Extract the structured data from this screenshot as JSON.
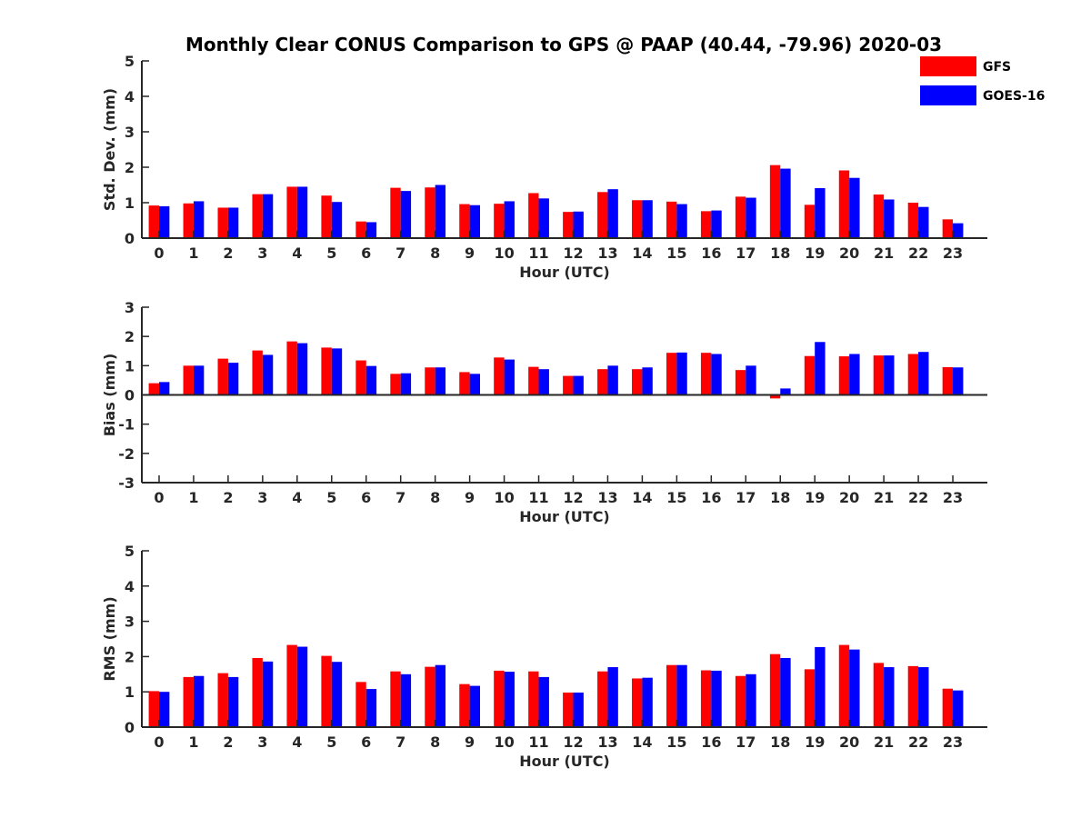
{
  "chart_data": [
    {
      "type": "bar",
      "title": "Monthly Clear CONUS Comparison to GPS @ PAAP (40.44, -79.96) 2020-03",
      "xlabel": "Hour (UTC)",
      "ylabel": "Std. Dev. (mm)",
      "ylim": [
        0,
        5
      ],
      "yticks": [
        "0",
        "1",
        "2",
        "3",
        "4",
        "5"
      ],
      "categories": [
        "0",
        "1",
        "2",
        "3",
        "4",
        "5",
        "6",
        "7",
        "8",
        "9",
        "10",
        "11",
        "12",
        "13",
        "14",
        "15",
        "16",
        "17",
        "18",
        "19",
        "20",
        "21",
        "22",
        "23"
      ],
      "series": [
        {
          "name": "GFS",
          "color": "#ff0000",
          "values": [
            0.92,
            0.98,
            0.86,
            1.24,
            1.45,
            1.2,
            0.47,
            1.42,
            1.43,
            0.96,
            0.97,
            1.27,
            0.74,
            1.3,
            1.07,
            1.03,
            0.76,
            1.17,
            2.06,
            0.94,
            1.91,
            1.23,
            1.0,
            0.53
          ]
        },
        {
          "name": "GOES-16",
          "color": "#0000ff",
          "values": [
            0.9,
            1.04,
            0.86,
            1.24,
            1.45,
            1.02,
            0.45,
            1.33,
            1.5,
            0.93,
            1.04,
            1.12,
            0.75,
            1.38,
            1.07,
            0.96,
            0.78,
            1.14,
            1.96,
            1.41,
            1.7,
            1.09,
            0.88,
            0.42
          ]
        }
      ],
      "legend": {
        "placement": "top-right",
        "entries": [
          "GFS",
          "GOES-16"
        ]
      },
      "grid": false
    },
    {
      "type": "bar",
      "xlabel": "Hour (UTC)",
      "ylabel": "Bias (mm)",
      "ylim": [
        -3,
        3
      ],
      "yticks": [
        "-3",
        "-2",
        "-1",
        "0",
        "1",
        "2",
        "3"
      ],
      "categories": [
        "0",
        "1",
        "2",
        "3",
        "4",
        "5",
        "6",
        "7",
        "8",
        "9",
        "10",
        "11",
        "12",
        "13",
        "14",
        "15",
        "16",
        "17",
        "18",
        "19",
        "20",
        "21",
        "22",
        "23"
      ],
      "series": [
        {
          "name": "GFS",
          "color": "#ff0000",
          "values": [
            0.4,
            1.0,
            1.24,
            1.52,
            1.83,
            1.62,
            1.18,
            0.72,
            0.94,
            0.78,
            1.28,
            0.96,
            0.65,
            0.88,
            0.88,
            1.44,
            1.44,
            0.85,
            -0.12,
            1.33,
            1.32,
            1.35,
            1.4,
            0.95
          ]
        },
        {
          "name": "GOES-16",
          "color": "#0000ff",
          "values": [
            0.44,
            1.0,
            1.1,
            1.37,
            1.77,
            1.59,
            0.99,
            0.74,
            0.94,
            0.72,
            1.21,
            0.88,
            0.65,
            1.0,
            0.94,
            1.45,
            1.4,
            1.0,
            0.22,
            1.81,
            1.4,
            1.35,
            1.47,
            0.94
          ]
        }
      ],
      "grid": false
    },
    {
      "type": "bar",
      "xlabel": "Hour (UTC)",
      "ylabel": "RMS (mm)",
      "ylim": [
        0,
        5
      ],
      "yticks": [
        "0",
        "1",
        "2",
        "3",
        "4",
        "5"
      ],
      "categories": [
        "0",
        "1",
        "2",
        "3",
        "4",
        "5",
        "6",
        "7",
        "8",
        "9",
        "10",
        "11",
        "12",
        "13",
        "14",
        "15",
        "16",
        "17",
        "18",
        "19",
        "20",
        "21",
        "22",
        "23"
      ],
      "series": [
        {
          "name": "GFS",
          "color": "#ff0000",
          "values": [
            1.02,
            1.42,
            1.53,
            1.96,
            2.33,
            2.02,
            1.28,
            1.58,
            1.71,
            1.22,
            1.6,
            1.58,
            0.98,
            1.58,
            1.38,
            1.76,
            1.61,
            1.45,
            2.07,
            1.64,
            2.33,
            1.82,
            1.73,
            1.09
          ]
        },
        {
          "name": "GOES-16",
          "color": "#0000ff",
          "values": [
            1.0,
            1.45,
            1.42,
            1.86,
            2.28,
            1.85,
            1.08,
            1.5,
            1.76,
            1.17,
            1.57,
            1.42,
            0.98,
            1.7,
            1.4,
            1.76,
            1.6,
            1.5,
            1.96,
            2.27,
            2.2,
            1.7,
            1.7,
            1.04
          ]
        }
      ],
      "grid": false
    }
  ]
}
